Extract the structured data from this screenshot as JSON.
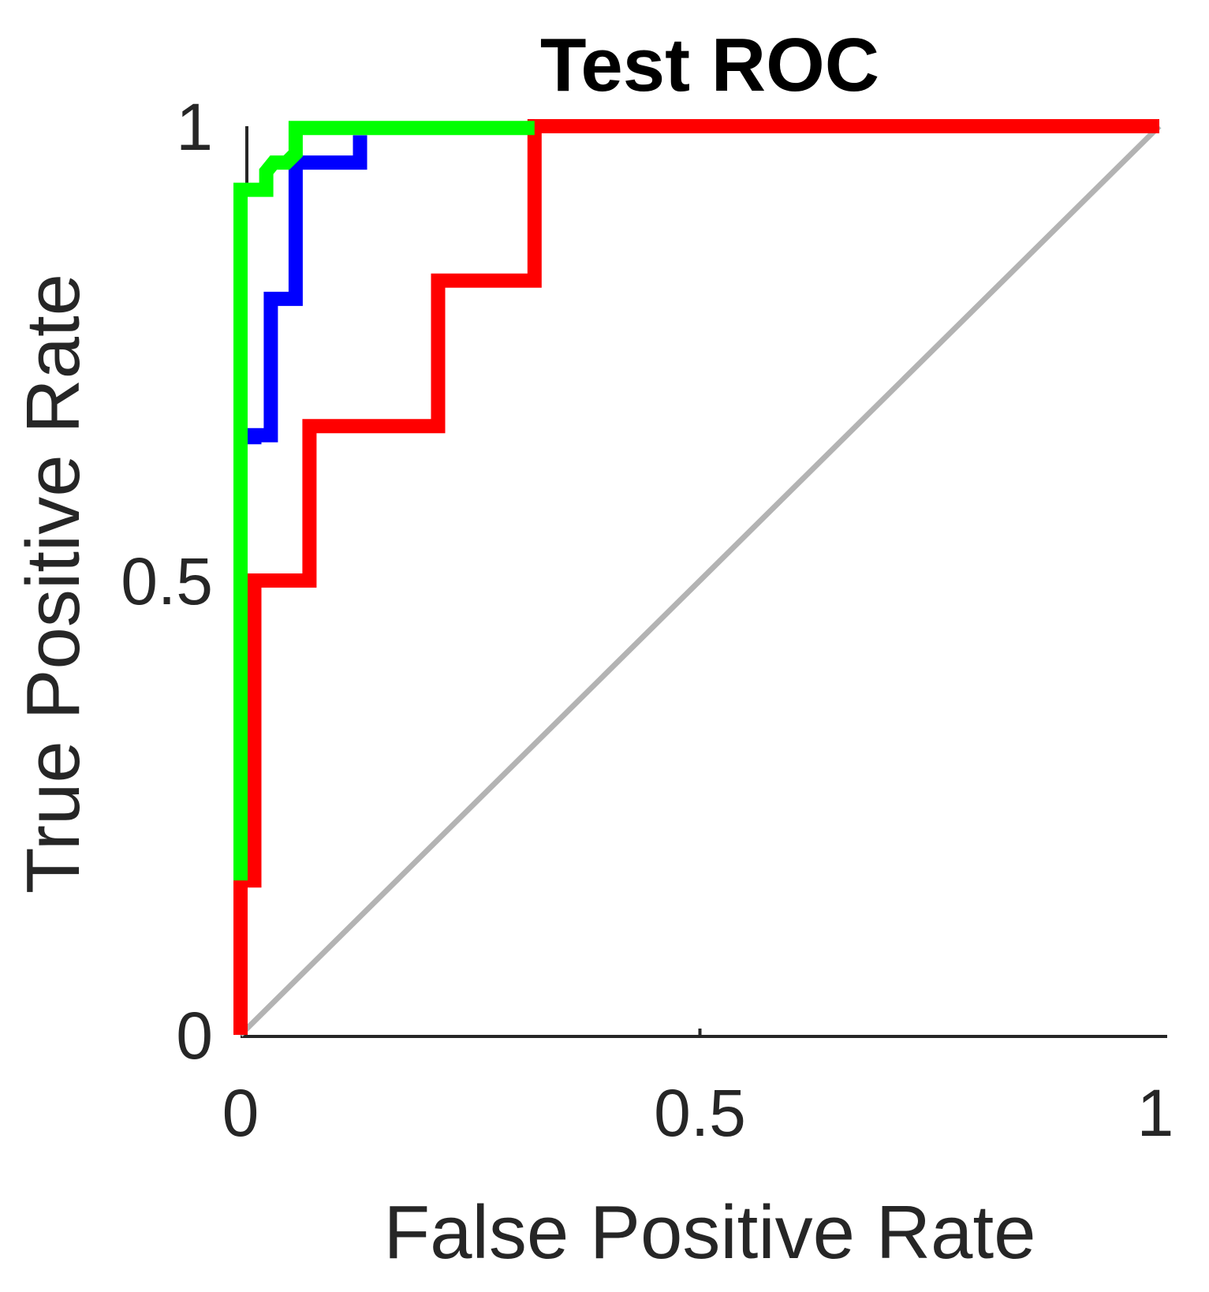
{
  "chart_data": {
    "type": "line",
    "title": "Test ROC",
    "xlabel": "False Positive Rate",
    "ylabel": "True Positive Rate",
    "xlim": [
      0,
      1
    ],
    "ylim": [
      0,
      1
    ],
    "xticks": [
      "0",
      "0.5",
      "1"
    ],
    "yticks": [
      "0",
      "0.5",
      "1"
    ],
    "grid": false,
    "legend": "none",
    "series": [
      {
        "color": "#b3b3b3",
        "x": [
          0,
          1
        ],
        "y": [
          0,
          1
        ]
      },
      {
        "color": "#ff0000",
        "x": [
          0,
          0,
          0.015,
          0.015,
          0.075,
          0.075,
          0.215,
          0.215,
          0.32,
          0.32,
          1
        ],
        "y": [
          0,
          0.17,
          0.17,
          0.5,
          0.5,
          0.67,
          0.67,
          0.83,
          0.83,
          1.0,
          1.0
        ]
      },
      {
        "color": "#0000ff",
        "x": [
          0.015,
          0.015,
          0.033,
          0.033,
          0.06,
          0.06,
          0.13,
          0.13
        ],
        "y": [
          0.65,
          0.66,
          0.66,
          0.81,
          0.81,
          0.96,
          0.96,
          0.99
        ]
      },
      {
        "color": "#00ff00",
        "x": [
          0,
          0,
          0.01,
          0.028,
          0.028,
          0.036,
          0.05,
          0.06,
          0.06,
          0.32
        ],
        "y": [
          0.17,
          0.93,
          0.93,
          0.93,
          0.95,
          0.96,
          0.96,
          0.97,
          0.998,
          0.998
        ]
      }
    ]
  }
}
